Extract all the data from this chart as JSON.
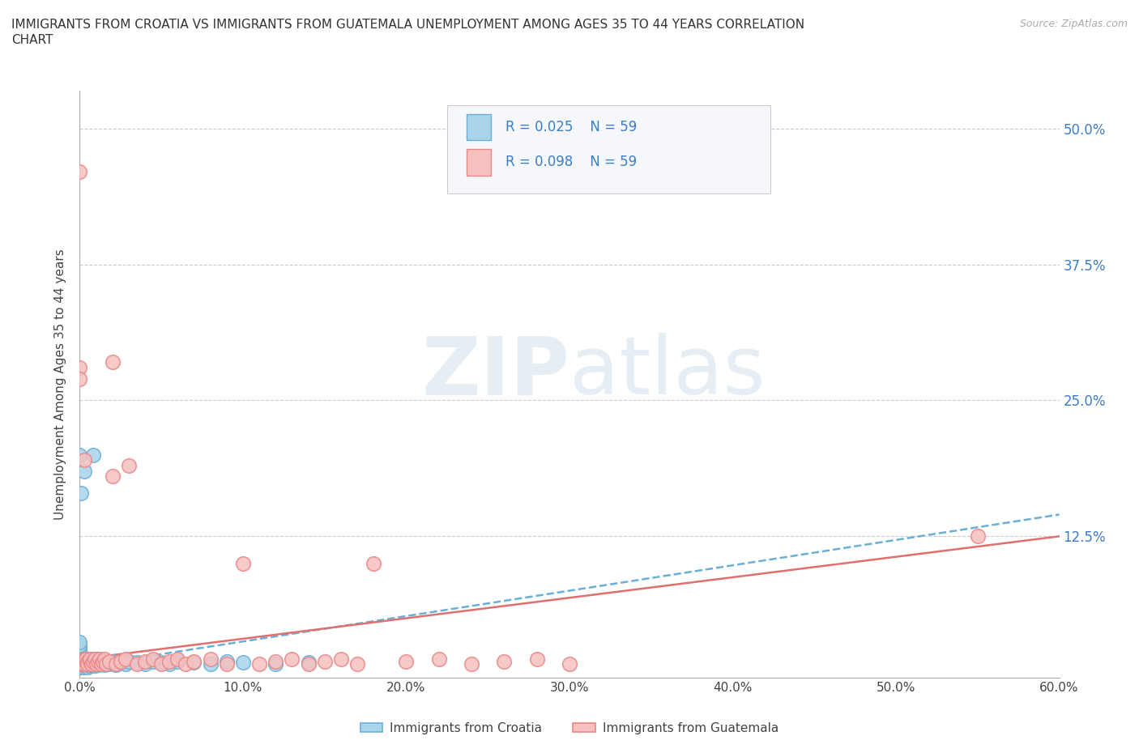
{
  "title_line1": "IMMIGRANTS FROM CROATIA VS IMMIGRANTS FROM GUATEMALA UNEMPLOYMENT AMONG AGES 35 TO 44 YEARS CORRELATION",
  "title_line2": "CHART",
  "source": "Source: ZipAtlas.com",
  "ylabel": "Unemployment Among Ages 35 to 44 years",
  "xlim": [
    0.0,
    0.6
  ],
  "ylim": [
    -0.005,
    0.535
  ],
  "xtick_positions": [
    0.0,
    0.1,
    0.2,
    0.3,
    0.4,
    0.5,
    0.6
  ],
  "xticklabels": [
    "0.0%",
    "10.0%",
    "20.0%",
    "30.0%",
    "40.0%",
    "50.0%",
    "60.0%"
  ],
  "ytick_positions": [
    0.125,
    0.25,
    0.375,
    0.5
  ],
  "ytick_labels": [
    "12.5%",
    "25.0%",
    "37.5%",
    "50.0%"
  ],
  "croatia_color": "#aad4ea",
  "croatia_edge": "#6aafd6",
  "guatemala_color": "#f7c0c0",
  "guatemala_edge": "#e88888",
  "trend_croatia_color": "#6aafd6",
  "trend_guatemala_color": "#e07070",
  "croatia_R": 0.025,
  "croatia_N": 59,
  "guatemala_R": 0.098,
  "guatemala_N": 59,
  "watermark_text": "ZIPatlas",
  "legend_croatia_label": "Immigrants from Croatia",
  "legend_guatemala_label": "Immigrants from Guatemala",
  "croatia_x": [
    0.0,
    0.0,
    0.0,
    0.0,
    0.0,
    0.0,
    0.0,
    0.0,
    0.0,
    0.0,
    0.001,
    0.001,
    0.001,
    0.002,
    0.002,
    0.002,
    0.003,
    0.003,
    0.004,
    0.004,
    0.005,
    0.005,
    0.005,
    0.006,
    0.006,
    0.007,
    0.007,
    0.008,
    0.009,
    0.01,
    0.01,
    0.011,
    0.012,
    0.013,
    0.014,
    0.015,
    0.016,
    0.018,
    0.02,
    0.022,
    0.025,
    0.028,
    0.03,
    0.035,
    0.04,
    0.045,
    0.05,
    0.055,
    0.06,
    0.07,
    0.08,
    0.09,
    0.1,
    0.12,
    0.14,
    0.008,
    0.003,
    0.001,
    0.0
  ],
  "croatia_y": [
    0.005,
    0.008,
    0.01,
    0.012,
    0.015,
    0.018,
    0.02,
    0.022,
    0.025,
    0.028,
    0.005,
    0.007,
    0.01,
    0.005,
    0.008,
    0.012,
    0.006,
    0.01,
    0.007,
    0.012,
    0.005,
    0.008,
    0.012,
    0.006,
    0.01,
    0.007,
    0.012,
    0.008,
    0.006,
    0.008,
    0.012,
    0.007,
    0.009,
    0.008,
    0.01,
    0.007,
    0.009,
    0.008,
    0.01,
    0.007,
    0.009,
    0.008,
    0.01,
    0.009,
    0.008,
    0.01,
    0.009,
    0.008,
    0.01,
    0.009,
    0.008,
    0.01,
    0.009,
    0.008,
    0.009,
    0.2,
    0.185,
    0.165,
    0.2
  ],
  "guatemala_x": [
    0.02,
    0.0,
    0.0,
    0.0,
    0.001,
    0.001,
    0.002,
    0.002,
    0.003,
    0.003,
    0.004,
    0.004,
    0.005,
    0.005,
    0.006,
    0.006,
    0.007,
    0.008,
    0.009,
    0.01,
    0.011,
    0.012,
    0.013,
    0.014,
    0.015,
    0.016,
    0.018,
    0.02,
    0.022,
    0.025,
    0.028,
    0.03,
    0.035,
    0.04,
    0.045,
    0.05,
    0.055,
    0.06,
    0.065,
    0.07,
    0.08,
    0.09,
    0.1,
    0.11,
    0.12,
    0.13,
    0.14,
    0.15,
    0.16,
    0.17,
    0.18,
    0.2,
    0.22,
    0.24,
    0.26,
    0.28,
    0.3,
    0.55,
    0.003
  ],
  "guatemala_y": [
    0.18,
    0.46,
    0.28,
    0.27,
    0.01,
    0.008,
    0.01,
    0.008,
    0.012,
    0.008,
    0.01,
    0.012,
    0.01,
    0.008,
    0.01,
    0.012,
    0.008,
    0.01,
    0.012,
    0.008,
    0.01,
    0.012,
    0.008,
    0.01,
    0.012,
    0.008,
    0.01,
    0.285,
    0.008,
    0.01,
    0.012,
    0.19,
    0.008,
    0.01,
    0.012,
    0.008,
    0.01,
    0.012,
    0.008,
    0.01,
    0.012,
    0.008,
    0.1,
    0.008,
    0.01,
    0.012,
    0.008,
    0.01,
    0.012,
    0.008,
    0.1,
    0.01,
    0.012,
    0.008,
    0.01,
    0.012,
    0.008,
    0.125,
    0.195
  ],
  "croatia_trend_x0": 0.0,
  "croatia_trend_y0": 0.005,
  "croatia_trend_x1": 0.6,
  "croatia_trend_y1": 0.145,
  "guatemala_trend_x0": 0.0,
  "guatemala_trend_y0": 0.012,
  "guatemala_trend_x1": 0.6,
  "guatemala_trend_y1": 0.125
}
